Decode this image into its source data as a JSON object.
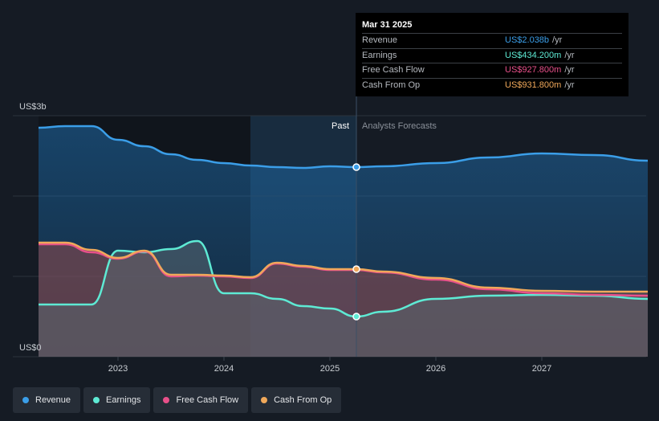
{
  "chart_data": {
    "type": "area",
    "y_unit_top": "US$3b",
    "y_unit_bottom": "US$0",
    "ylim": [
      0,
      3.0
    ],
    "x_ticks": [
      "2023",
      "2024",
      "2025",
      "2026",
      "2027"
    ],
    "past_label": "Past",
    "forecast_label": "Analysts Forecasts",
    "tooltip": {
      "date": "Mar 31 2025",
      "rows": [
        {
          "label": "Revenue",
          "value": "US$2.038b",
          "unit": "/yr",
          "color": "#3b9ee8"
        },
        {
          "label": "Earnings",
          "value": "US$434.200m",
          "unit": "/yr",
          "color": "#5eead4"
        },
        {
          "label": "Free Cash Flow",
          "value": "US$927.800m",
          "unit": "/yr",
          "color": "#e8508a"
        },
        {
          "label": "Cash From Op",
          "value": "US$931.800m",
          "unit": "/yr",
          "color": "#f0a85a"
        }
      ]
    },
    "series": [
      {
        "name": "Revenue",
        "color": "#3b9ee8",
        "points": [
          [
            2022.25,
            2.85
          ],
          [
            2022.5,
            2.87
          ],
          [
            2022.75,
            2.87
          ],
          [
            2023.0,
            2.7
          ],
          [
            2023.25,
            2.62
          ],
          [
            2023.5,
            2.52
          ],
          [
            2023.75,
            2.45
          ],
          [
            2024.0,
            2.41
          ],
          [
            2024.25,
            2.38
          ],
          [
            2024.5,
            2.36
          ],
          [
            2024.75,
            2.35
          ],
          [
            2025.0,
            2.37
          ],
          [
            2025.25,
            2.36
          ],
          [
            2025.5,
            2.37
          ],
          [
            2026.0,
            2.41
          ],
          [
            2026.5,
            2.48
          ],
          [
            2027.0,
            2.53
          ],
          [
            2027.5,
            2.51
          ],
          [
            2028.0,
            2.44
          ]
        ]
      },
      {
        "name": "Earnings",
        "color": "#5eead4",
        "points": [
          [
            2022.25,
            0.65
          ],
          [
            2022.5,
            0.65
          ],
          [
            2022.75,
            0.65
          ],
          [
            2023.0,
            1.32
          ],
          [
            2023.25,
            1.3
          ],
          [
            2023.5,
            1.34
          ],
          [
            2023.75,
            1.44
          ],
          [
            2024.0,
            0.79
          ],
          [
            2024.25,
            0.79
          ],
          [
            2024.5,
            0.72
          ],
          [
            2024.75,
            0.63
          ],
          [
            2025.0,
            0.6
          ],
          [
            2025.25,
            0.5
          ],
          [
            2025.5,
            0.56
          ],
          [
            2026.0,
            0.72
          ],
          [
            2026.5,
            0.76
          ],
          [
            2027.0,
            0.77
          ],
          [
            2027.5,
            0.76
          ],
          [
            2028.0,
            0.72
          ]
        ]
      },
      {
        "name": "Free Cash Flow",
        "color": "#e8508a",
        "points": [
          [
            2022.25,
            1.4
          ],
          [
            2022.5,
            1.4
          ],
          [
            2022.75,
            1.3
          ],
          [
            2023.0,
            1.22
          ],
          [
            2023.25,
            1.31
          ],
          [
            2023.5,
            1.0
          ],
          [
            2023.75,
            1.01
          ],
          [
            2024.0,
            1.0
          ],
          [
            2024.25,
            0.98
          ],
          [
            2024.5,
            1.16
          ],
          [
            2024.75,
            1.12
          ],
          [
            2025.0,
            1.08
          ],
          [
            2025.25,
            1.08
          ],
          [
            2025.5,
            1.05
          ],
          [
            2026.0,
            0.96
          ],
          [
            2026.5,
            0.84
          ],
          [
            2027.0,
            0.79
          ],
          [
            2027.5,
            0.77
          ],
          [
            2028.0,
            0.76
          ]
        ]
      },
      {
        "name": "Cash From Op",
        "color": "#f0a85a",
        "points": [
          [
            2022.25,
            1.42
          ],
          [
            2022.5,
            1.42
          ],
          [
            2022.75,
            1.33
          ],
          [
            2023.0,
            1.23
          ],
          [
            2023.25,
            1.32
          ],
          [
            2023.5,
            1.02
          ],
          [
            2023.75,
            1.02
          ],
          [
            2024.0,
            1.01
          ],
          [
            2024.25,
            0.99
          ],
          [
            2024.5,
            1.17
          ],
          [
            2024.75,
            1.13
          ],
          [
            2025.0,
            1.09
          ],
          [
            2025.25,
            1.09
          ],
          [
            2025.5,
            1.06
          ],
          [
            2026.0,
            0.98
          ],
          [
            2026.5,
            0.86
          ],
          [
            2027.0,
            0.82
          ],
          [
            2027.5,
            0.81
          ],
          [
            2028.0,
            0.81
          ]
        ]
      }
    ],
    "highlight_x": 2025.25,
    "past_shade_start": 2024.25,
    "grid": true,
    "legend_position": "bottom-left"
  }
}
